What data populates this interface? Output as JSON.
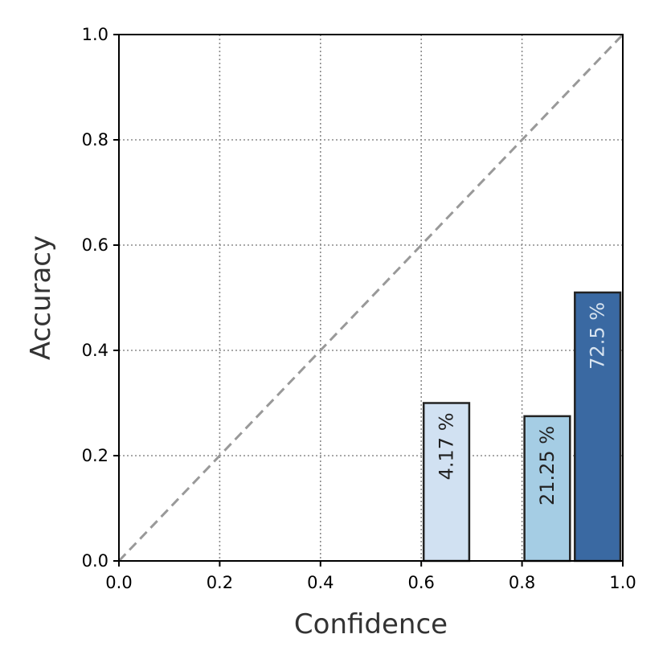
{
  "chart_data": {
    "type": "bar",
    "xlabel": "Confidence",
    "ylabel": "Accuracy",
    "xlim": [
      0.0,
      1.0
    ],
    "ylim": [
      0.0,
      1.0
    ],
    "x_ticks": [
      "0.0",
      "0.2",
      "0.4",
      "0.6",
      "0.8",
      "1.0"
    ],
    "y_ticks": [
      "0.0",
      "0.2",
      "0.4",
      "0.6",
      "0.8",
      "1.0"
    ],
    "grid": true,
    "reference_line": "diagonal",
    "bars": [
      {
        "x_start": 0.6,
        "x_end": 0.7,
        "accuracy": 0.3,
        "label": "4.17 %",
        "color": "#d1e1f2",
        "label_color": "#222222"
      },
      {
        "x_start": 0.8,
        "x_end": 0.9,
        "accuracy": 0.275,
        "label": "21.25 %",
        "color": "#a5cde4",
        "label_color": "#222222"
      },
      {
        "x_start": 0.9,
        "x_end": 1.0,
        "accuracy": 0.51,
        "label": "72.5 %",
        "color": "#3a69a2",
        "label_color": "#d8e4f0"
      }
    ]
  }
}
